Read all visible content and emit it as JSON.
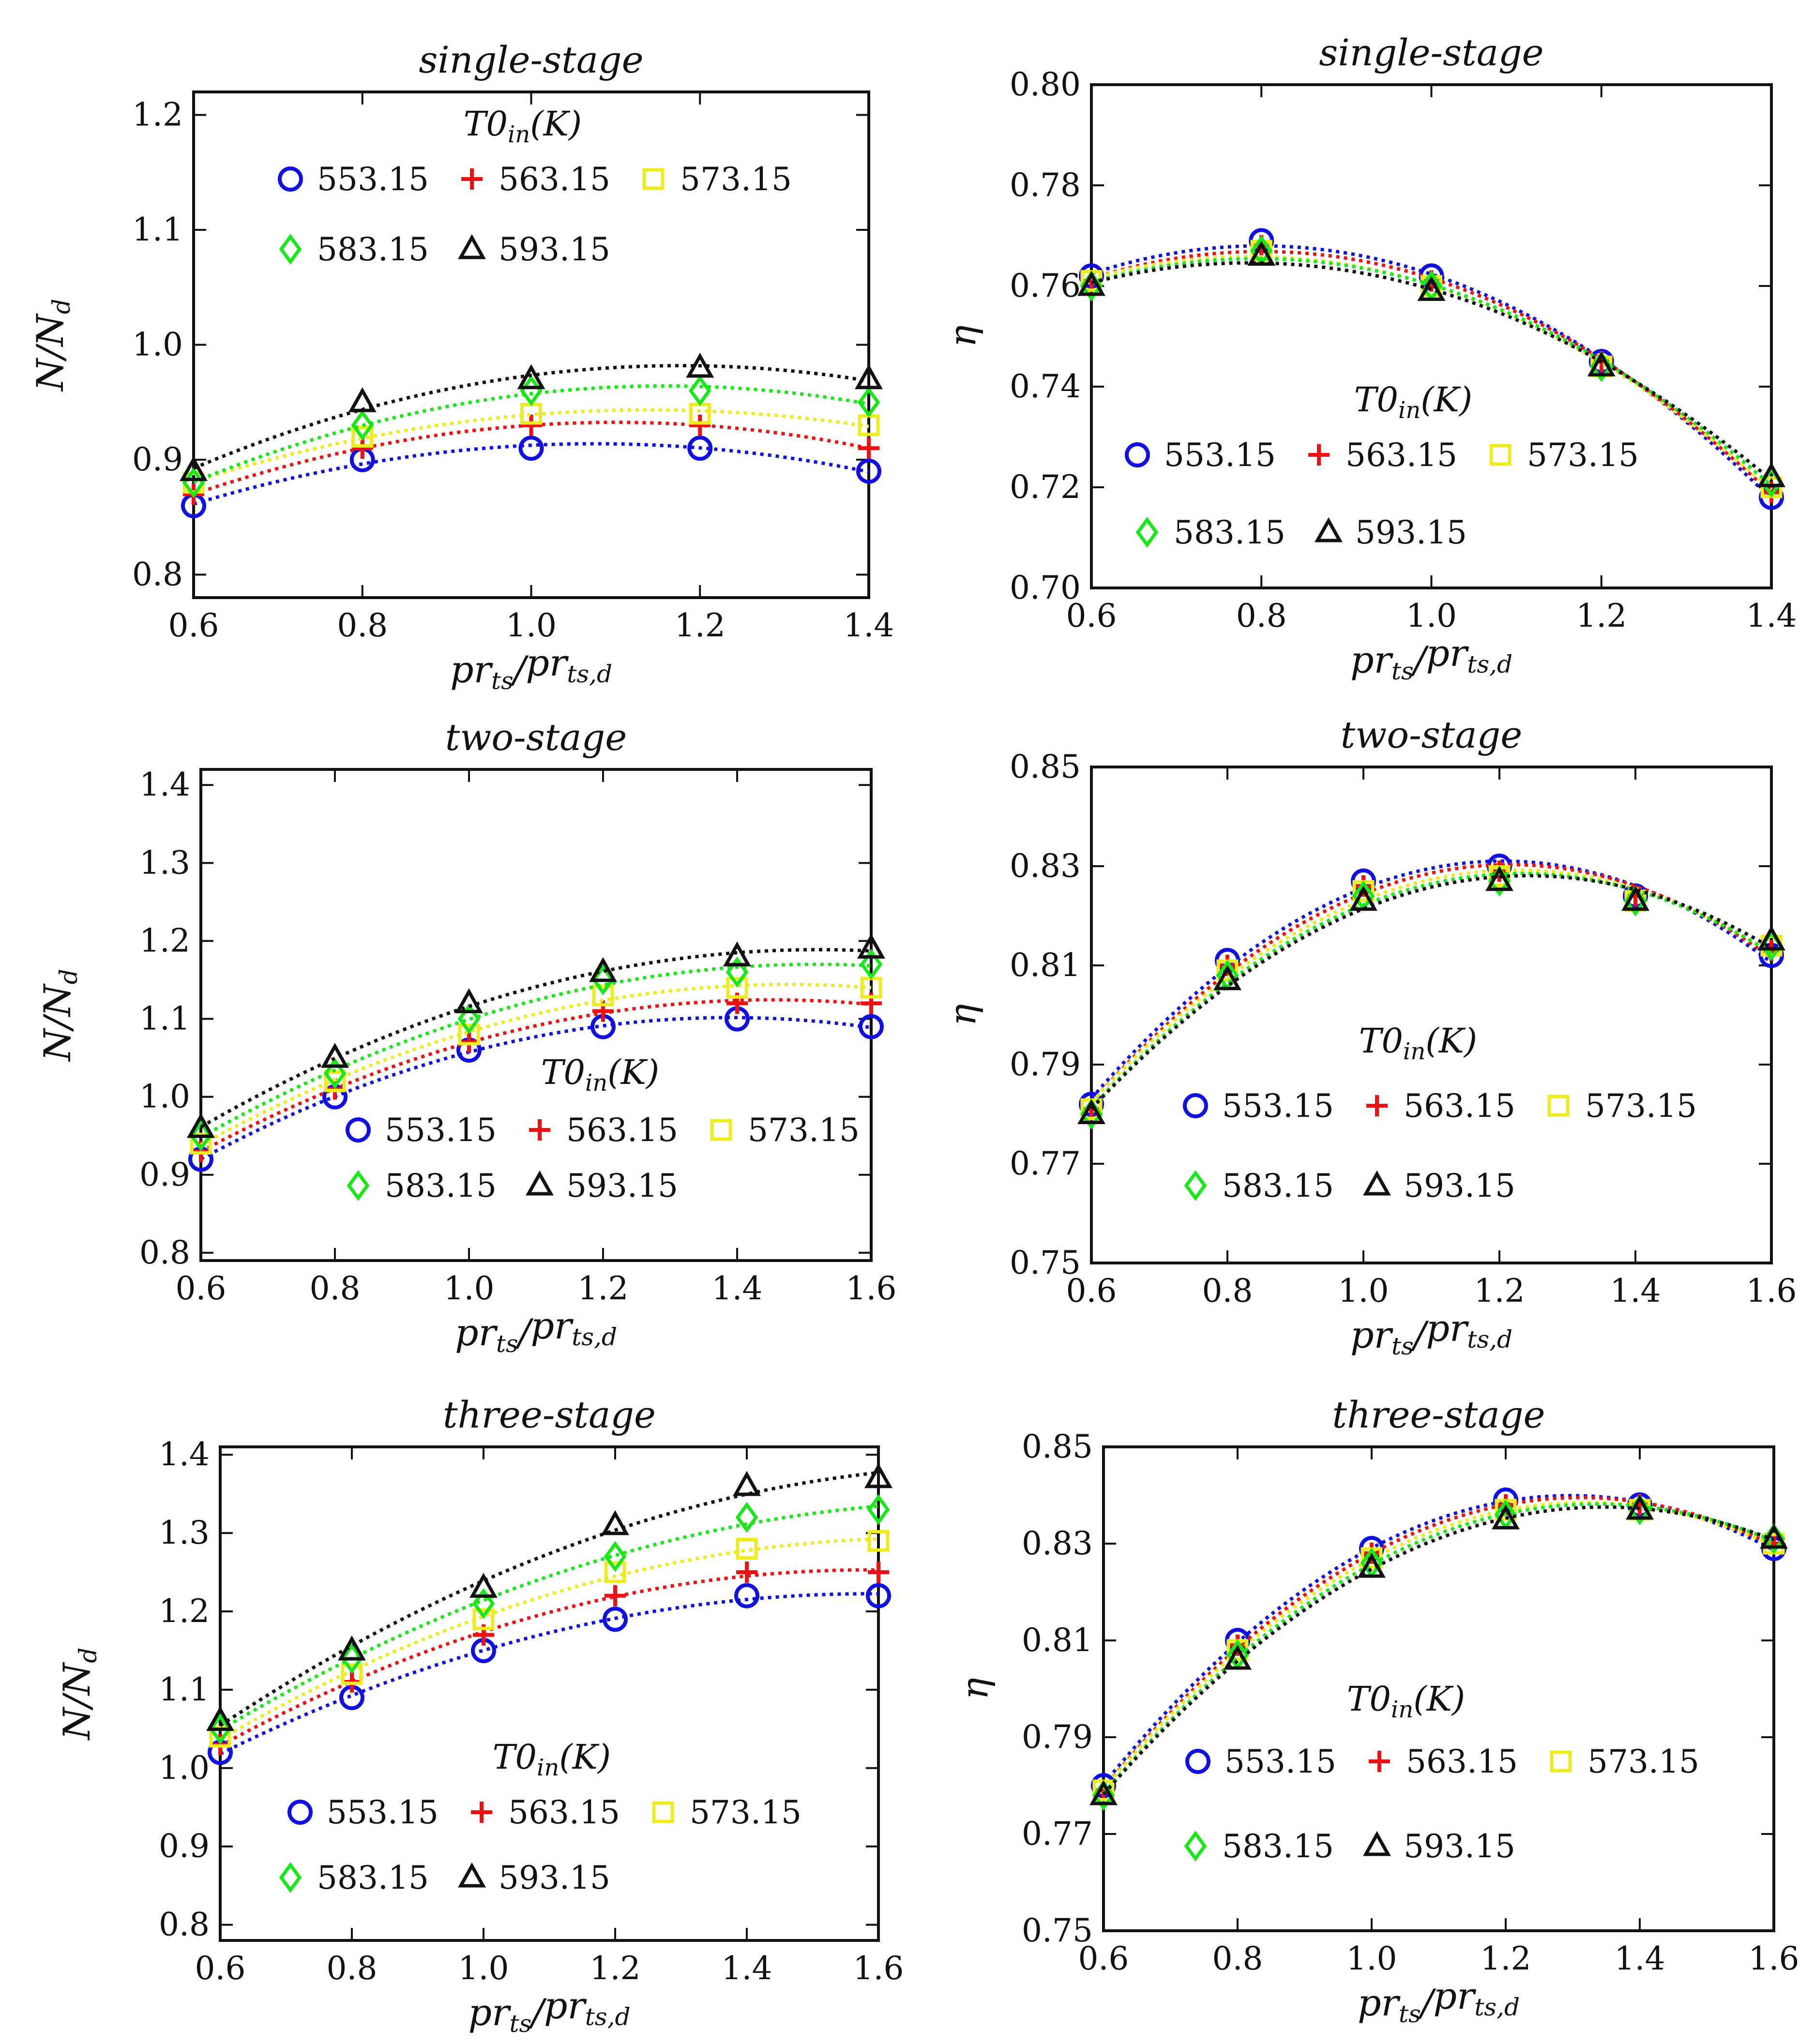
{
  "series_names": [
    "553.15",
    "563.15",
    "573.15",
    "583.15",
    "593.15"
  ],
  "series_colors": [
    "#1010e0",
    "#ee1111",
    "#ecec20",
    "#18e818",
    "#111111"
  ],
  "series_markers": [
    "circle",
    "plus",
    "square",
    "diamond",
    "triangle"
  ],
  "legend_title": {
    "main": "T0",
    "sub": "in",
    "paren": "(K)"
  },
  "x_label": {
    "pr": "pr",
    "ts": "ts",
    "slash": "/",
    "tsd": "ts,d"
  },
  "y_label_N": {
    "N": "N/N",
    "sub": "d"
  },
  "y_label_eta": "η",
  "chart_data": [
    {
      "type": "scatter",
      "id": "single-speed",
      "title": "single-stage",
      "xlim": [
        0.6,
        1.4
      ],
      "ylim": [
        0.78,
        1.22
      ],
      "xticks": [
        0.6,
        0.8,
        1.0,
        1.2,
        1.4
      ],
      "xtick_labels": [
        "0.6",
        "0.8",
        "1.0",
        "1.2",
        "1.4"
      ],
      "yticks": [
        0.8,
        0.9,
        1.0,
        1.1,
        1.2
      ],
      "ytick_labels": [
        "0.8",
        "0.9",
        "1.0",
        "1.1",
        "1.2"
      ],
      "ylabel": "N/Nd",
      "legend_position": "top",
      "x": [
        0.6,
        0.8,
        1.0,
        1.2,
        1.4
      ],
      "series": [
        {
          "name": "553.15",
          "values": [
            0.86,
            0.9,
            0.91,
            0.91,
            0.89
          ]
        },
        {
          "name": "563.15",
          "values": [
            0.87,
            0.91,
            0.93,
            0.93,
            0.91
          ]
        },
        {
          "name": "573.15",
          "values": [
            0.88,
            0.92,
            0.94,
            0.94,
            0.93
          ]
        },
        {
          "name": "583.15",
          "values": [
            0.88,
            0.93,
            0.96,
            0.96,
            0.95
          ]
        },
        {
          "name": "593.15",
          "values": [
            0.89,
            0.95,
            0.97,
            0.98,
            0.97
          ]
        }
      ]
    },
    {
      "type": "scatter",
      "id": "single-eff",
      "title": "single-stage",
      "xlim": [
        0.6,
        1.4
      ],
      "ylim": [
        0.7,
        0.8
      ],
      "xticks": [
        0.6,
        0.8,
        1.0,
        1.2,
        1.4
      ],
      "xtick_labels": [
        "0.6",
        "0.8",
        "1.0",
        "1.2",
        "1.4"
      ],
      "yticks": [
        0.7,
        0.72,
        0.74,
        0.76,
        0.78,
        0.8
      ],
      "ytick_labels": [
        "0.70",
        "0.72",
        "0.74",
        "0.76",
        "0.78",
        "0.80"
      ],
      "ylabel": "η",
      "legend_position": "center-left",
      "x": [
        0.6,
        0.8,
        1.0,
        1.2,
        1.4
      ],
      "series": [
        {
          "name": "553.15",
          "values": [
            0.762,
            0.769,
            0.762,
            0.745,
            0.718
          ]
        },
        {
          "name": "563.15",
          "values": [
            0.761,
            0.768,
            0.761,
            0.745,
            0.719
          ]
        },
        {
          "name": "573.15",
          "values": [
            0.761,
            0.767,
            0.76,
            0.744,
            0.72
          ]
        },
        {
          "name": "583.15",
          "values": [
            0.76,
            0.767,
            0.76,
            0.744,
            0.721
          ]
        },
        {
          "name": "593.15",
          "values": [
            0.76,
            0.766,
            0.759,
            0.744,
            0.722
          ]
        }
      ]
    },
    {
      "type": "scatter",
      "id": "two-speed",
      "title": "two-stage",
      "xlim": [
        0.6,
        1.6
      ],
      "ylim": [
        0.79,
        1.42
      ],
      "xticks": [
        0.6,
        0.8,
        1.0,
        1.2,
        1.4,
        1.6
      ],
      "xtick_labels": [
        "0.6",
        "0.8",
        "1.0",
        "1.2",
        "1.4",
        "1.6"
      ],
      "yticks": [
        0.8,
        0.9,
        1.0,
        1.1,
        1.2,
        1.3,
        1.4
      ],
      "ytick_labels": [
        "0.8",
        "0.9",
        "1.0",
        "1.1",
        "1.2",
        "1.3",
        "1.4"
      ],
      "ylabel": "N/Nd",
      "legend_position": "bottom-right",
      "x": [
        0.6,
        0.8,
        1.0,
        1.2,
        1.4,
        1.6
      ],
      "series": [
        {
          "name": "553.15",
          "values": [
            0.92,
            1.0,
            1.06,
            1.09,
            1.1,
            1.09
          ]
        },
        {
          "name": "563.15",
          "values": [
            0.93,
            1.01,
            1.07,
            1.11,
            1.12,
            1.12
          ]
        },
        {
          "name": "573.15",
          "values": [
            0.94,
            1.02,
            1.08,
            1.13,
            1.14,
            1.14
          ]
        },
        {
          "name": "583.15",
          "values": [
            0.95,
            1.03,
            1.1,
            1.15,
            1.16,
            1.17
          ]
        },
        {
          "name": "593.15",
          "values": [
            0.96,
            1.05,
            1.12,
            1.16,
            1.18,
            1.19
          ]
        }
      ]
    },
    {
      "type": "scatter",
      "id": "two-eff",
      "title": "two-stage",
      "xlim": [
        0.6,
        1.6
      ],
      "ylim": [
        0.75,
        0.85
      ],
      "xticks": [
        0.6,
        0.8,
        1.0,
        1.2,
        1.4,
        1.6
      ],
      "xtick_labels": [
        "0.6",
        "0.8",
        "1.0",
        "1.2",
        "1.4",
        "1.6"
      ],
      "yticks": [
        0.75,
        0.77,
        0.79,
        0.81,
        0.83,
        0.85
      ],
      "ytick_labels": [
        "0.75",
        "0.77",
        "0.79",
        "0.81",
        "0.83",
        "0.85"
      ],
      "ylabel": "η",
      "legend_position": "bottom-center",
      "x": [
        0.6,
        0.8,
        1.0,
        1.2,
        1.4,
        1.6
      ],
      "series": [
        {
          "name": "553.15",
          "values": [
            0.782,
            0.811,
            0.827,
            0.83,
            0.824,
            0.812
          ]
        },
        {
          "name": "563.15",
          "values": [
            0.781,
            0.81,
            0.826,
            0.829,
            0.824,
            0.813
          ]
        },
        {
          "name": "573.15",
          "values": [
            0.781,
            0.809,
            0.825,
            0.828,
            0.823,
            0.814
          ]
        },
        {
          "name": "583.15",
          "values": [
            0.78,
            0.808,
            0.824,
            0.827,
            0.823,
            0.814
          ]
        },
        {
          "name": "593.15",
          "values": [
            0.78,
            0.807,
            0.823,
            0.827,
            0.823,
            0.815
          ]
        }
      ]
    },
    {
      "type": "scatter",
      "id": "three-speed",
      "title": "three-stage",
      "xlim": [
        0.6,
        1.6
      ],
      "ylim": [
        0.78,
        1.41
      ],
      "xticks": [
        0.6,
        0.8,
        1.0,
        1.2,
        1.4,
        1.6
      ],
      "xtick_labels": [
        "0.6",
        "0.8",
        "1.0",
        "1.2",
        "1.4",
        "1.6"
      ],
      "yticks": [
        0.8,
        0.9,
        1.0,
        1.1,
        1.2,
        1.3,
        1.4
      ],
      "ytick_labels": [
        "0.8",
        "0.9",
        "1.0",
        "1.1",
        "1.2",
        "1.3",
        "1.4"
      ],
      "ylabel": "N/Nd",
      "legend_position": "bottom-center",
      "x": [
        0.6,
        0.8,
        1.0,
        1.2,
        1.4,
        1.6
      ],
      "series": [
        {
          "name": "553.15",
          "values": [
            1.02,
            1.09,
            1.15,
            1.19,
            1.22,
            1.22
          ]
        },
        {
          "name": "563.15",
          "values": [
            1.03,
            1.11,
            1.17,
            1.22,
            1.25,
            1.25
          ]
        },
        {
          "name": "573.15",
          "values": [
            1.04,
            1.12,
            1.19,
            1.25,
            1.28,
            1.29
          ]
        },
        {
          "name": "583.15",
          "values": [
            1.05,
            1.14,
            1.21,
            1.27,
            1.32,
            1.33
          ]
        },
        {
          "name": "593.15",
          "values": [
            1.06,
            1.15,
            1.23,
            1.31,
            1.36,
            1.37
          ]
        }
      ]
    },
    {
      "type": "scatter",
      "id": "three-eff",
      "title": "three-stage",
      "xlim": [
        0.6,
        1.6
      ],
      "ylim": [
        0.75,
        0.85
      ],
      "xticks": [
        0.6,
        0.8,
        1.0,
        1.2,
        1.4,
        1.6
      ],
      "xtick_labels": [
        "0.6",
        "0.8",
        "1.0",
        "1.2",
        "1.4",
        "1.6"
      ],
      "yticks": [
        0.75,
        0.77,
        0.79,
        0.81,
        0.83,
        0.85
      ],
      "ytick_labels": [
        "0.75",
        "0.77",
        "0.79",
        "0.81",
        "0.83",
        "0.85"
      ],
      "ylabel": "η",
      "legend_position": "bottom-center",
      "x": [
        0.6,
        0.8,
        1.0,
        1.2,
        1.4,
        1.6
      ],
      "series": [
        {
          "name": "553.15",
          "values": [
            0.78,
            0.81,
            0.829,
            0.839,
            0.838,
            0.829
          ]
        },
        {
          "name": "563.15",
          "values": [
            0.779,
            0.809,
            0.828,
            0.838,
            0.838,
            0.83
          ]
        },
        {
          "name": "573.15",
          "values": [
            0.779,
            0.808,
            0.827,
            0.837,
            0.837,
            0.83
          ]
        },
        {
          "name": "583.15",
          "values": [
            0.778,
            0.807,
            0.826,
            0.836,
            0.837,
            0.831
          ]
        },
        {
          "name": "593.15",
          "values": [
            0.778,
            0.806,
            0.825,
            0.835,
            0.837,
            0.831
          ]
        }
      ]
    }
  ]
}
